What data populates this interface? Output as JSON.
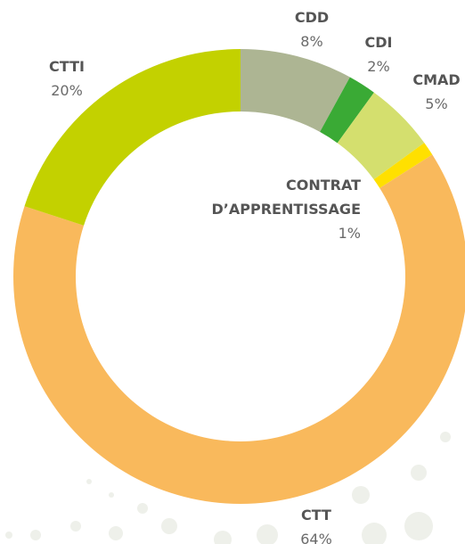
{
  "chart_data": {
    "type": "donut",
    "categories": [
      "CDD",
      "CDI",
      "CMAD",
      "CONTRAT D’APPRENTISSAGE",
      "CTT",
      "CTTI"
    ],
    "values": [
      8,
      2,
      5,
      1,
      64,
      20
    ],
    "value_labels": [
      "8%",
      "2%",
      "5%",
      "1%",
      "64%",
      "20%"
    ],
    "colors": [
      "#adb593",
      "#3aaa35",
      "#d4df6e",
      "#ffe000",
      "#f9b95c",
      "#c3d100"
    ]
  }
}
